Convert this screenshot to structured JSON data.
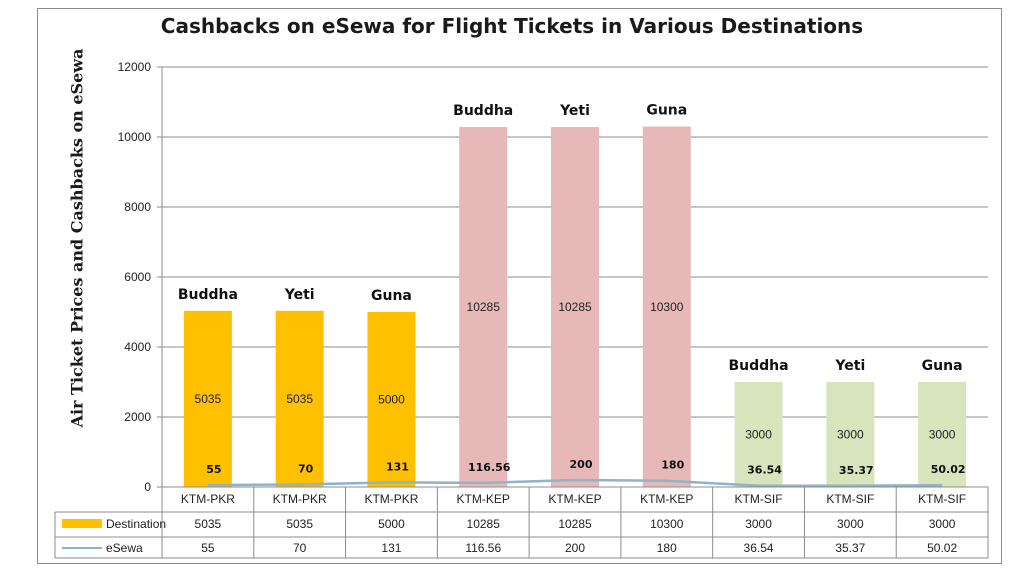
{
  "chart_data": {
    "type": "bar",
    "title": "Cashbacks on eSewa for Flight Tickets in Various Destinations",
    "ylabel": "Air Ticket Prices and Cashbacks on eSewa",
    "xlabel": "",
    "ylim": [
      0,
      12000
    ],
    "yticks": [
      "0",
      "2000",
      "4000",
      "6000",
      "8000",
      "10000",
      "12000"
    ],
    "grid": true,
    "categories": [
      "KTM-PKR",
      "KTM-PKR",
      "KTM-PKR",
      "KTM-KEP",
      "KTM-KEP",
      "KTM-KEP",
      "KTM-SIF",
      "KTM-SIF",
      "KTM-SIF"
    ],
    "airlines": [
      "Buddha",
      "Yeti",
      "Guna",
      "Buddha",
      "Yeti",
      "Guna",
      "Buddha",
      "Yeti",
      "Guna"
    ],
    "bar_colors": [
      "#ffc000",
      "#ffc000",
      "#ffc000",
      "#e6b9b8",
      "#e6b9b8",
      "#e6b9b8",
      "#d7e4bc",
      "#d7e4bc",
      "#d7e4bc"
    ],
    "line_color": "#8db4c8",
    "series": [
      {
        "name": "Destination",
        "kind": "bar",
        "values": [
          5035,
          5035,
          5000,
          10285,
          10285,
          10300,
          3000,
          3000,
          3000
        ],
        "labels": [
          "5035",
          "5035",
          "5000",
          "10285",
          "10285",
          "10300",
          "3000",
          "3000",
          "3000"
        ]
      },
      {
        "name": "eSewa",
        "kind": "line",
        "values": [
          55,
          70,
          131,
          116.56,
          200,
          180,
          36.54,
          35.37,
          50.02
        ],
        "labels": [
          "55",
          "70",
          "131",
          "116.56",
          "200",
          "180",
          "36.54",
          "35.37",
          "50.02"
        ]
      }
    ],
    "legend": "data-table"
  }
}
